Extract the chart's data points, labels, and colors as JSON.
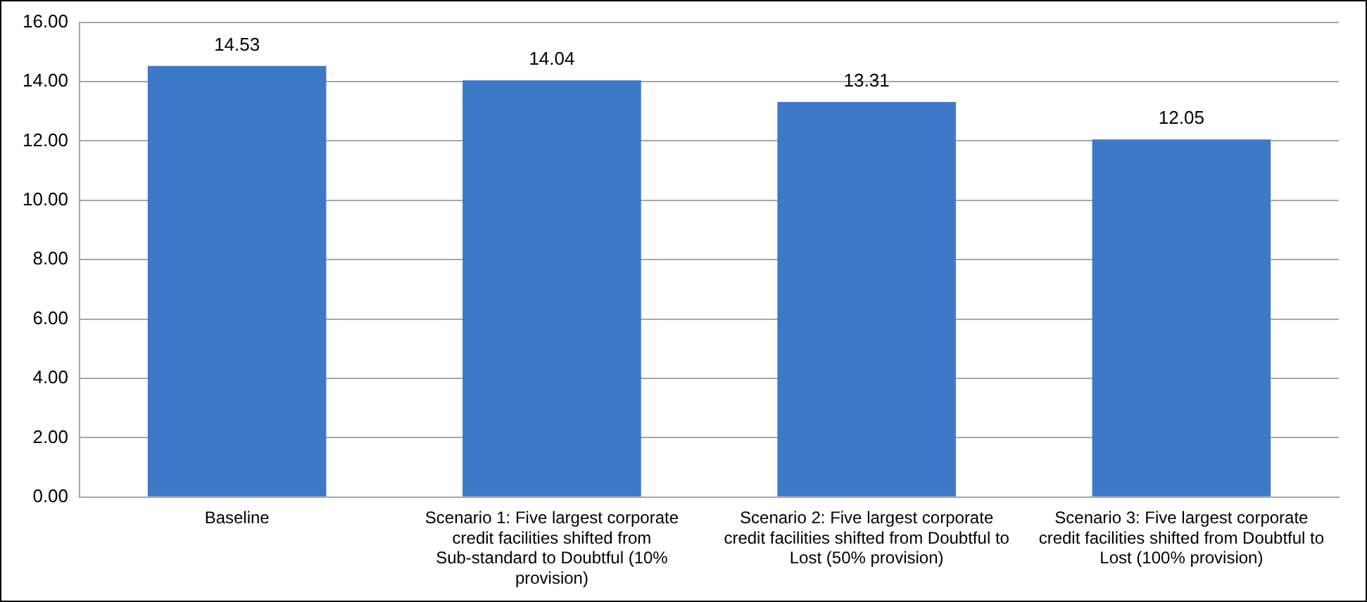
{
  "chart_data": {
    "type": "bar",
    "categories": [
      "Baseline",
      "Scenario 1: Five largest corporate credit facilities shifted from Sub-standard to Doubtful (10% provision)",
      "Scenario 2: Five largest corporate credit facilities shifted from Doubtful to Lost (50% provision)",
      "Scenario 3: Five largest corporate credit facilities shifted from Doubtful to Lost (100% provision)"
    ],
    "values": [
      14.53,
      14.04,
      13.31,
      12.05
    ],
    "color": "#3d79c6",
    "ylim": [
      0,
      16
    ],
    "yticks": [
      {
        "value": 0,
        "label": "0.00"
      },
      {
        "value": 2,
        "label": "2.00"
      },
      {
        "value": 4,
        "label": "4.00"
      },
      {
        "value": 6,
        "label": "6.00"
      },
      {
        "value": 8,
        "label": "8.00"
      },
      {
        "value": 10,
        "label": "10.00"
      },
      {
        "value": 12,
        "label": "12.00"
      },
      {
        "value": 14,
        "label": "14.00"
      },
      {
        "value": 16,
        "label": "16.00"
      }
    ],
    "grid": "y",
    "data_labels": true,
    "legend": false
  }
}
